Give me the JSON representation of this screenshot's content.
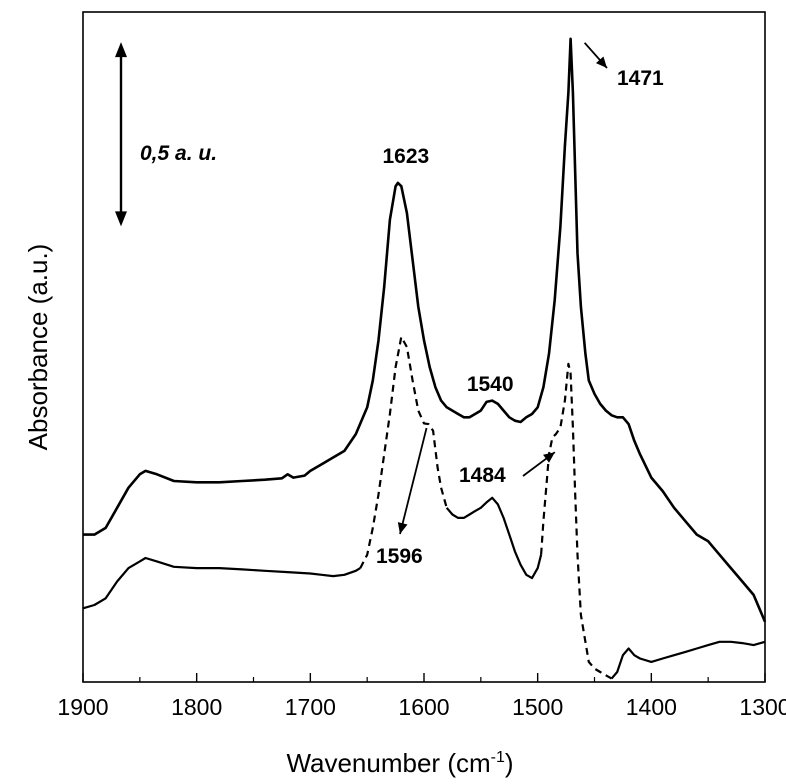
{
  "chart_data": {
    "type": "line",
    "xlabel": "Wavenumber (cm",
    "xlabel_sup": "-1",
    "xlabel_close": ")",
    "ylabel": "Absorbance (a.u.)",
    "xlim": [
      1900,
      1300
    ],
    "x_reversed": true,
    "ylim": [
      0,
      100
    ],
    "y_ticks_shown": false,
    "x_ticks": [
      1900,
      1800,
      1700,
      1600,
      1500,
      1400,
      1300
    ],
    "x_tick_labels": [
      "1900",
      "1800",
      "1700",
      "1600",
      "1500",
      "1400",
      "1300"
    ],
    "grid": false,
    "legend": "none",
    "scale_bar": {
      "label": "0,5 a. u.",
      "from": 68,
      "to": 95.5
    },
    "series": [
      {
        "style": "solid",
        "x": [
          1900,
          1890,
          1880,
          1870,
          1860,
          1850,
          1845,
          1835,
          1820,
          1800,
          1780,
          1760,
          1740,
          1725,
          1720,
          1715,
          1705,
          1700,
          1690,
          1680,
          1670,
          1660,
          1650,
          1645,
          1640,
          1635,
          1630,
          1625,
          1623,
          1620,
          1615,
          1610,
          1605,
          1600,
          1595,
          1590,
          1585,
          1580,
          1575,
          1570,
          1565,
          1560,
          1555,
          1550,
          1545,
          1540,
          1535,
          1530,
          1525,
          1520,
          1515,
          1510,
          1505,
          1500,
          1495,
          1490,
          1485,
          1480,
          1476,
          1473,
          1471,
          1469,
          1467,
          1465,
          1462,
          1458,
          1455,
          1450,
          1445,
          1440,
          1435,
          1430,
          1425,
          1420,
          1415,
          1410,
          1400,
          1390,
          1380,
          1370,
          1360,
          1350,
          1340,
          1330,
          1320,
          1310,
          1300
        ],
        "y": [
          22,
          22,
          23,
          26,
          29,
          31,
          31.5,
          31,
          30,
          29.8,
          29.8,
          30,
          30.2,
          30.4,
          31,
          30.5,
          30.8,
          31.5,
          32.5,
          33.5,
          34.5,
          37,
          41,
          45,
          51,
          59,
          69,
          74,
          74.5,
          74,
          70,
          63,
          56,
          51,
          47,
          44,
          42,
          41,
          40.5,
          40,
          39.5,
          39.5,
          40,
          40.5,
          41.8,
          42,
          41.5,
          40.5,
          39.5,
          39,
          38.8,
          39.5,
          40,
          41,
          44,
          49,
          57,
          68,
          80,
          88,
          96,
          88,
          76,
          64,
          56,
          49,
          45,
          43,
          41.5,
          40.5,
          39.8,
          39.5,
          39.5,
          38.5,
          36,
          34,
          30.5,
          28.5,
          26,
          24,
          22,
          21,
          19,
          17,
          15,
          13,
          9
        ]
      },
      {
        "style": "mixed",
        "x": [
          1900,
          1890,
          1880,
          1870,
          1860,
          1850,
          1845,
          1835,
          1820,
          1800,
          1780,
          1760,
          1740,
          1720,
          1700,
          1690,
          1680,
          1670,
          1660,
          1656,
          1650,
          1645,
          1640,
          1635,
          1630,
          1625,
          1620,
          1615,
          1610,
          1605,
          1600,
          1596,
          1592,
          1588,
          1585,
          1580,
          1575,
          1570,
          1565,
          1560,
          1555,
          1550,
          1545,
          1540,
          1535,
          1530,
          1525,
          1520,
          1515,
          1510,
          1505,
          1500,
          1497,
          1495,
          1492,
          1490,
          1487,
          1484,
          1480,
          1476,
          1473,
          1471,
          1469,
          1467,
          1465,
          1462,
          1458,
          1455,
          1450,
          1445,
          1440,
          1435,
          1430,
          1425,
          1420,
          1415,
          1410,
          1400,
          1390,
          1380,
          1370,
          1360,
          1350,
          1340,
          1330,
          1320,
          1310,
          1300
        ],
        "y": [
          11,
          11.5,
          12.5,
          15,
          17,
          18,
          18.5,
          18,
          17.2,
          17,
          17,
          16.8,
          16.6,
          16.4,
          16.2,
          16,
          15.8,
          16,
          16.6,
          17,
          19,
          23,
          28,
          34,
          40,
          47,
          51.5,
          50,
          45,
          40.5,
          38.6,
          38.5,
          37.5,
          32,
          29,
          26,
          25,
          24.5,
          24.5,
          25,
          25.5,
          26,
          26.8,
          27.5,
          26.5,
          24.5,
          22,
          19.5,
          17.5,
          16,
          15.5,
          17,
          19,
          24,
          30,
          34,
          36.5,
          37,
          38,
          42,
          47.5,
          46,
          38,
          28,
          19,
          10,
          6,
          3,
          2,
          1.5,
          1,
          0.5,
          1.5,
          4,
          5,
          4,
          3.5,
          3,
          3.5,
          4,
          4.5,
          5,
          5.5,
          6,
          6,
          5.8,
          5.5,
          6
        ],
        "dashed_from": 1658,
        "dashed_to": 1585,
        "dashed_from_2": 1497,
        "dashed_to_2": 1440
      }
    ],
    "annotations": [
      {
        "text": "1623",
        "x": 1623
      },
      {
        "text": "1540",
        "x": 1540
      },
      {
        "text": "1471",
        "x": 1471
      },
      {
        "text": "1484",
        "x": 1484
      },
      {
        "text": "1596",
        "x": 1596
      }
    ]
  }
}
